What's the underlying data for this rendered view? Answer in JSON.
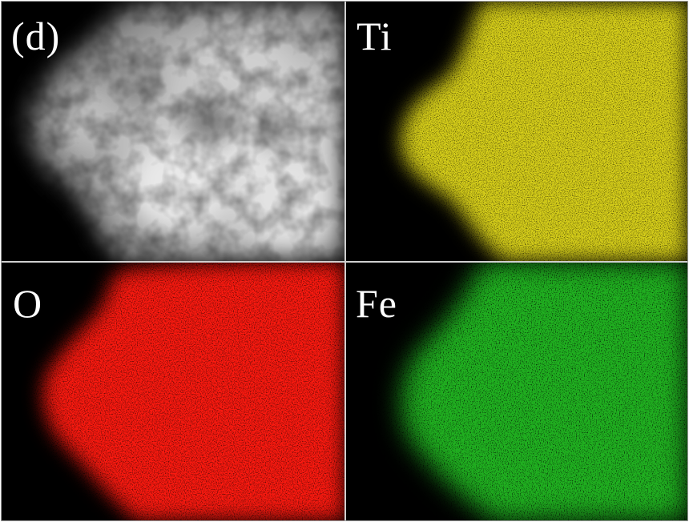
{
  "panels": [
    {
      "id": "haadf",
      "label": "(d)",
      "color": "#f2f2f2"
    },
    {
      "id": "ti",
      "label": "Ti",
      "color": "#e6df1a"
    },
    {
      "id": "o",
      "label": "O",
      "color": "#ff1a12"
    },
    {
      "id": "fe",
      "label": "Fe",
      "color": "#22c822"
    }
  ]
}
